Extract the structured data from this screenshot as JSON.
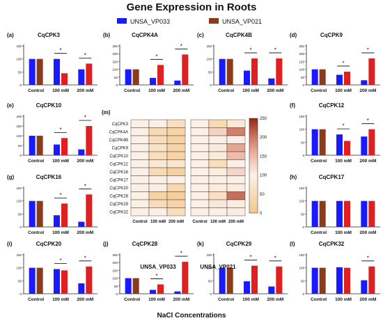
{
  "title": "Gene Expression in Roots",
  "xlabel_bottom": "NaCl Concentrations",
  "legend": [
    {
      "label": "UNSA_VP033",
      "color": "#1a1aff"
    },
    {
      "label": "UNSA_VP021",
      "color": "#8b3a1a"
    }
  ],
  "colors": {
    "vp033": "#1a1aff",
    "vp021": "#8b3a1a",
    "treat": "#e02020",
    "sig": "#000000"
  },
  "chart_data": [
    {
      "type": "bar",
      "panel": "(a)",
      "title": "CqCPK3",
      "categories": [
        "Control",
        "100 mM",
        "200 mM"
      ],
      "series": [
        {
          "name": "UNSA_VP033",
          "values": [
            100,
            100,
            60
          ]
        },
        {
          "name": "UNSA_VP021",
          "values": [
            100,
            45,
            82
          ]
        }
      ],
      "ylim": [
        0,
        150
      ],
      "significant": [
        1,
        2
      ]
    },
    {
      "type": "bar",
      "panel": "(b)",
      "title": "CqCPK4A",
      "categories": [
        "Control",
        "100 mM",
        "200 mM"
      ],
      "series": [
        {
          "name": "UNSA_VP033",
          "values": [
            100,
            45,
            28
          ]
        },
        {
          "name": "UNSA_VP021",
          "values": [
            100,
            128,
            195
          ]
        }
      ],
      "ylim": [
        0,
        250
      ],
      "significant": [
        1,
        2
      ]
    },
    {
      "type": "bar",
      "panel": "(c)",
      "title": "CqCPK4B",
      "categories": [
        "Control",
        "100 mM",
        "200 mM"
      ],
      "series": [
        {
          "name": "UNSA_VP033",
          "values": [
            100,
            55,
            25
          ]
        },
        {
          "name": "UNSA_VP021",
          "values": [
            100,
            102,
            102
          ]
        }
      ],
      "ylim": [
        0,
        150
      ],
      "significant": [
        1,
        2
      ]
    },
    {
      "type": "bar",
      "panel": "(d)",
      "title": "CqCPK9",
      "categories": [
        "Control",
        "100 mM",
        "200 mM"
      ],
      "series": [
        {
          "name": "UNSA_VP033",
          "values": [
            100,
            65,
            30
          ]
        },
        {
          "name": "UNSA_VP021",
          "values": [
            100,
            85,
            170
          ]
        }
      ],
      "ylim": [
        0,
        250
      ],
      "significant": [
        1,
        2
      ]
    },
    {
      "type": "bar",
      "panel": "(e)",
      "title": "CqCPK10",
      "categories": [
        "Control",
        "100 mM",
        "200 mM"
      ],
      "series": [
        {
          "name": "UNSA_VP033",
          "values": [
            100,
            55,
            30
          ]
        },
        {
          "name": "UNSA_VP021",
          "values": [
            100,
            88,
            150
          ]
        }
      ],
      "ylim": [
        0,
        200
      ],
      "significant": [
        1,
        2
      ]
    },
    {
      "type": "bar",
      "panel": "(f)",
      "title": "CqCPK12",
      "categories": [
        "Control",
        "100 mM",
        "200 mM"
      ],
      "series": [
        {
          "name": "UNSA_VP033",
          "values": [
            100,
            80,
            72
          ]
        },
        {
          "name": "UNSA_VP021",
          "values": [
            100,
            55,
            100
          ]
        }
      ],
      "ylim": [
        0,
        150
      ],
      "significant": [
        1,
        2
      ]
    },
    {
      "type": "bar",
      "panel": "(g)",
      "title": "CqCPK16",
      "categories": [
        "Control",
        "100 mM",
        "200 mM"
      ],
      "series": [
        {
          "name": "UNSA_VP033",
          "values": [
            100,
            45,
            20
          ]
        },
        {
          "name": "UNSA_VP021",
          "values": [
            100,
            90,
            125
          ]
        }
      ],
      "ylim": [
        0,
        150
      ],
      "significant": [
        1,
        2
      ]
    },
    {
      "type": "bar",
      "panel": "(h)",
      "title": "CqCPK17",
      "categories": [
        "Control",
        "100 mM",
        "200 mM"
      ],
      "series": [
        {
          "name": "UNSA_VP033",
          "values": [
            100,
            100,
            100
          ]
        },
        {
          "name": "UNSA_VP021",
          "values": [
            100,
            100,
            100
          ]
        }
      ],
      "ylim": [
        0,
        150
      ],
      "significant": []
    },
    {
      "type": "bar",
      "panel": "(i)",
      "title": "CqCPK20",
      "categories": [
        "Control",
        "100 mM",
        "200 mM"
      ],
      "series": [
        {
          "name": "UNSA_VP033",
          "values": [
            100,
            95,
            40
          ]
        },
        {
          "name": "UNSA_VP021",
          "values": [
            100,
            90,
            105
          ]
        }
      ],
      "ylim": [
        0,
        150
      ],
      "significant": [
        1,
        2
      ]
    },
    {
      "type": "bar",
      "panel": "(j)",
      "title": "CqCPK28",
      "categories": [
        "Control",
        "100 mM",
        "200 mM"
      ],
      "series": [
        {
          "name": "UNSA_VP033",
          "values": [
            100,
            25,
            15
          ]
        },
        {
          "name": "UNSA_VP021",
          "values": [
            100,
            60,
            205
          ]
        }
      ],
      "ylim": [
        0,
        250
      ],
      "significant": [
        1,
        2
      ]
    },
    {
      "type": "bar",
      "panel": "(k)",
      "title": "CqCPK29",
      "categories": [
        "Control",
        "100 mM",
        "200 mM"
      ],
      "series": [
        {
          "name": "UNSA_VP033",
          "values": [
            100,
            48,
            28
          ]
        },
        {
          "name": "UNSA_VP021",
          "values": [
            100,
            108,
            105
          ]
        }
      ],
      "ylim": [
        0,
        150
      ],
      "significant": [
        1,
        2
      ]
    },
    {
      "type": "bar",
      "panel": "(l)",
      "title": "CqCPK32",
      "categories": [
        "Control",
        "100 mM",
        "200 mM"
      ],
      "series": [
        {
          "name": "UNSA_VP033",
          "values": [
            100,
            102,
            52
          ]
        },
        {
          "name": "UNSA_VP021",
          "values": [
            100,
            100,
            105
          ]
        }
      ],
      "ylim": [
        0,
        150
      ],
      "significant": [
        2
      ]
    },
    {
      "type": "heatmap",
      "panel": "(m)",
      "rows": [
        "CqCPK3",
        "CqCPK4A",
        "CqCPK4B",
        "CqCPK9",
        "CqCPK10",
        "CqCPK12",
        "CqCPK16",
        "CqCPK17",
        "CqCPK20",
        "CqCPK28",
        "CqCPK29",
        "CqCPK32"
      ],
      "columns": [
        "Control",
        "100 mM",
        "200 mM",
        "Control",
        "100 mM",
        "200 mM"
      ],
      "group_labels": [
        "UNSA_VP033",
        "UNSA_VP021"
      ],
      "colorbar_ticks": [
        0,
        50,
        100,
        150,
        200,
        250
      ],
      "range": [
        0,
        250
      ],
      "values": [
        [
          100,
          100,
          60,
          100,
          45,
          82
        ],
        [
          100,
          45,
          28,
          100,
          128,
          195
        ],
        [
          100,
          55,
          25,
          100,
          102,
          102
        ],
        [
          100,
          65,
          30,
          100,
          85,
          170
        ],
        [
          100,
          55,
          30,
          100,
          88,
          150
        ],
        [
          100,
          80,
          72,
          100,
          55,
          100
        ],
        [
          100,
          45,
          20,
          100,
          90,
          125
        ],
        [
          100,
          100,
          100,
          100,
          100,
          100
        ],
        [
          100,
          95,
          40,
          100,
          90,
          105
        ],
        [
          100,
          25,
          15,
          100,
          60,
          205
        ],
        [
          100,
          48,
          28,
          100,
          108,
          105
        ],
        [
          100,
          102,
          52,
          100,
          100,
          105
        ]
      ]
    }
  ]
}
